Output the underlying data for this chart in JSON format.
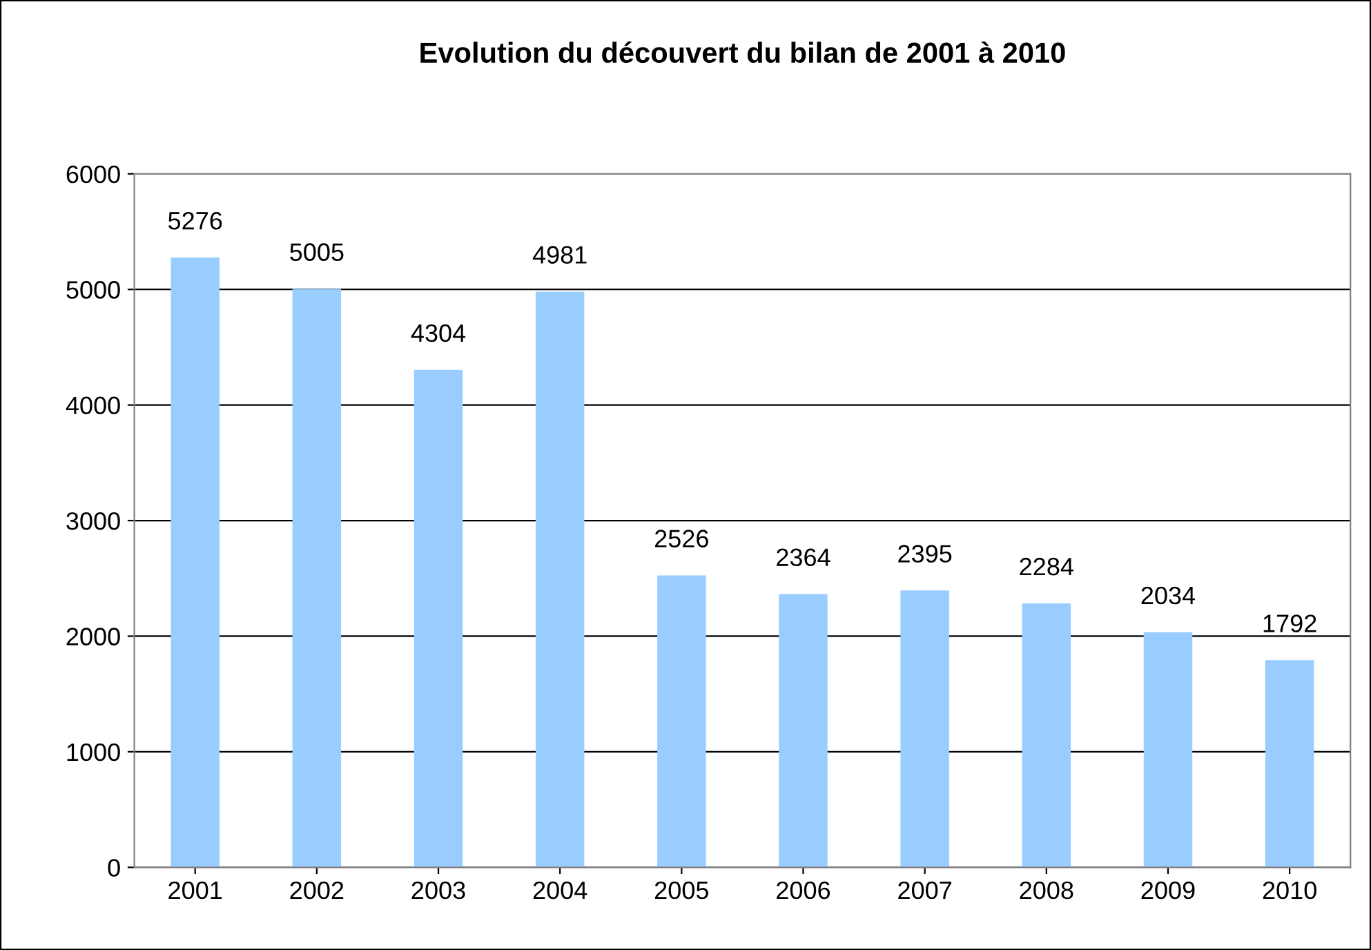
{
  "chart_data": {
    "type": "bar",
    "title": "Evolution du découvert du bilan de 2001 à 2010",
    "categories": [
      "2001",
      "2002",
      "2003",
      "2004",
      "2005",
      "2006",
      "2007",
      "2008",
      "2009",
      "2010"
    ],
    "values": [
      5276,
      5005,
      4304,
      4981,
      2526,
      2364,
      2395,
      2284,
      2034,
      1792
    ],
    "color": "#99ccff",
    "ylim": [
      0,
      6000
    ],
    "yticks": [
      0,
      1000,
      2000,
      3000,
      4000,
      5000,
      6000
    ],
    "grid": "y",
    "data_labels": true
  }
}
